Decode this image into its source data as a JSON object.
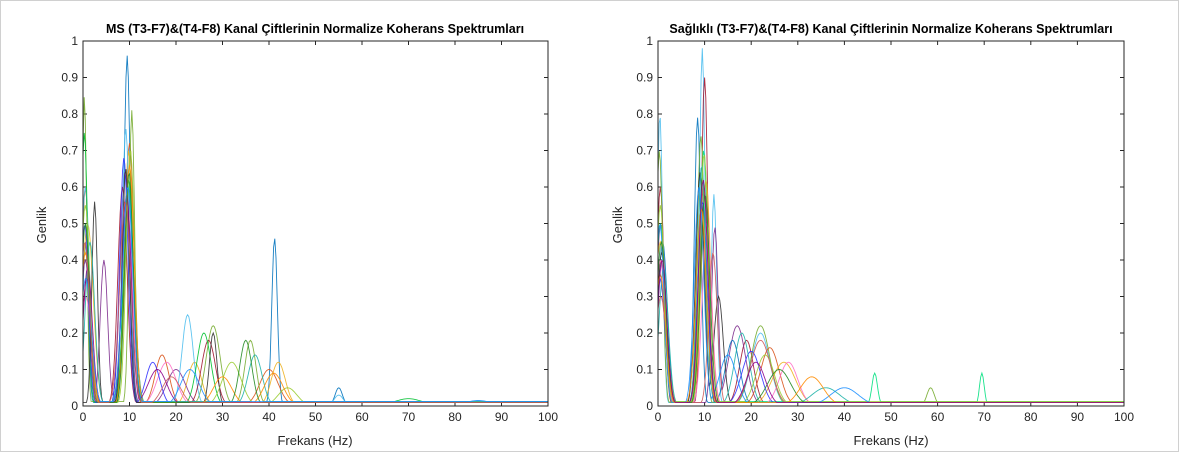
{
  "chart_data": [
    {
      "type": "line",
      "title": "MS (T3-F7)&(T4-F8) Kanal Çiftlerinin Normalize Koherans Spektrumları",
      "xlabel": "Frekans (Hz)",
      "ylabel": "Genlik",
      "xlim": [
        0,
        100
      ],
      "ylim": [
        0,
        1
      ],
      "xticks": [
        "0",
        "10",
        "20",
        "30",
        "40",
        "50",
        "60",
        "70",
        "80",
        "90",
        "100"
      ],
      "yticks": [
        "0",
        "0.1",
        "0.2",
        "0.3",
        "0.4",
        "0.5",
        "0.6",
        "0.7",
        "0.8",
        "0.9",
        "1"
      ],
      "grid": false,
      "legend": "none",
      "series": [
        {
          "color": "#0072bd",
          "peaks": [
            [
              0.5,
              0.45,
              0.6
            ],
            [
              9.5,
              0.96,
              0.7
            ],
            [
              41.2,
              0.46,
              0.6
            ],
            [
              55,
              0.05,
              0.8
            ]
          ],
          "floor": 0.01
        },
        {
          "color": "#d95319",
          "peaks": [
            [
              0.5,
              0.6,
              0.8
            ],
            [
              10,
              0.72,
              1.0
            ],
            [
              17,
              0.14,
              1.5
            ],
            [
              40,
              0.1,
              2.0
            ]
          ],
          "floor": 0.012
        },
        {
          "color": "#edb120",
          "peaks": [
            [
              1,
              0.5,
              1.2
            ],
            [
              9.8,
              0.7,
              0.9
            ],
            [
              24,
              0.12,
              1.5
            ],
            [
              42,
              0.12,
              1.5
            ]
          ],
          "floor": 0.01
        },
        {
          "color": "#7e2f8e",
          "peaks": [
            [
              0.5,
              0.4,
              1.0
            ],
            [
              4.5,
              0.4,
              0.8
            ],
            [
              9,
              0.64,
              1.0
            ],
            [
              20,
              0.1,
              2.0
            ]
          ],
          "floor": 0.01
        },
        {
          "color": "#77ac30",
          "peaks": [
            [
              0.3,
              0.85,
              0.5
            ],
            [
              10.5,
              0.81,
              0.6
            ],
            [
              28,
              0.22,
              1.5
            ],
            [
              36,
              0.18,
              1.2
            ]
          ],
          "floor": 0.012
        },
        {
          "color": "#4dbeee",
          "peaks": [
            [
              0.5,
              0.6,
              0.9
            ],
            [
              9.2,
              0.76,
              0.8
            ],
            [
              22.5,
              0.25,
              1.2
            ],
            [
              55,
              0.03,
              1.0
            ]
          ],
          "floor": 0.01
        },
        {
          "color": "#a2142f",
          "peaks": [
            [
              0.8,
              0.35,
              1.0
            ],
            [
              8.5,
              0.6,
              1.0
            ],
            [
              27,
              0.18,
              1.5
            ]
          ],
          "floor": 0.01
        },
        {
          "color": "#00c030",
          "peaks": [
            [
              0.3,
              0.75,
              0.7
            ],
            [
              9.8,
              0.62,
              1.0
            ],
            [
              26,
              0.2,
              1.5
            ],
            [
              70,
              0.02,
              3.0
            ]
          ],
          "floor": 0.01
        },
        {
          "color": "#ff6ec7",
          "peaks": [
            [
              0.6,
              0.3,
              1.2
            ],
            [
              9.5,
              0.55,
              1.1
            ],
            [
              18,
              0.12,
              2.0
            ]
          ],
          "floor": 0.01
        },
        {
          "color": "#3030ff",
          "peaks": [
            [
              0.4,
              0.5,
              0.8
            ],
            [
              8.8,
              0.68,
              0.9
            ],
            [
              15,
              0.12,
              1.5
            ]
          ],
          "floor": 0.01
        },
        {
          "color": "#2f2f2f",
          "peaks": [
            [
              2.5,
              0.56,
              0.6
            ],
            [
              9.2,
              0.65,
              0.8
            ],
            [
              28,
              0.2,
              0.8
            ]
          ],
          "floor": 0.01
        },
        {
          "color": "#9acd32",
          "peaks": [
            [
              0.5,
              0.55,
              1.0
            ],
            [
              10.2,
              0.7,
              0.9
            ],
            [
              32,
              0.12,
              2.0
            ],
            [
              44,
              0.05,
              2.0
            ]
          ],
          "floor": 0.01
        },
        {
          "color": "#20b2aa",
          "peaks": [
            [
              1.5,
              0.45,
              1.0
            ],
            [
              9.7,
              0.6,
              1.2
            ],
            [
              37,
              0.14,
              1.5
            ]
          ],
          "floor": 0.012
        },
        {
          "color": "#ff8c00",
          "peaks": [
            [
              0.5,
              0.42,
              1.1
            ],
            [
              10,
              0.66,
              1.0
            ],
            [
              30,
              0.08,
              2.0
            ],
            [
              41,
              0.09,
              2.0
            ]
          ],
          "floor": 0.01
        },
        {
          "color": "#8b008b",
          "peaks": [
            [
              1,
              0.38,
              1.0
            ],
            [
              9.4,
              0.58,
              1.0
            ],
            [
              16,
              0.1,
              2.0
            ]
          ],
          "floor": 0.01
        },
        {
          "color": "#228b22",
          "peaks": [
            [
              0.5,
              0.5,
              0.9
            ],
            [
              9.9,
              0.64,
              0.9
            ],
            [
              35,
              0.18,
              1.3
            ]
          ],
          "floor": 0.01
        },
        {
          "color": "#1e90ff",
          "peaks": [
            [
              0.6,
              0.35,
              1.2
            ],
            [
              9.6,
              0.6,
              1.1
            ],
            [
              23,
              0.1,
              2.0
            ],
            [
              85,
              0.015,
              3.0
            ]
          ],
          "floor": 0.012
        },
        {
          "color": "#cd5c5c",
          "peaks": [
            [
              0.4,
              0.45,
              1.0
            ],
            [
              9.1,
              0.56,
              1.2
            ],
            [
              19,
              0.08,
              2.0
            ]
          ],
          "floor": 0.01
        }
      ]
    },
    {
      "type": "line",
      "title": "Sağlıklı (T3-F7)&(T4-F8) Kanal Çiftlerinin Normalize Koherans Spektrumları",
      "xlabel": "Frekans (Hz)",
      "ylabel": "Genlik",
      "xlim": [
        0,
        100
      ],
      "ylim": [
        0,
        1
      ],
      "xticks": [
        "0",
        "10",
        "20",
        "30",
        "40",
        "50",
        "60",
        "70",
        "80",
        "90",
        "100"
      ],
      "yticks": [
        "0",
        "0.1",
        "0.2",
        "0.3",
        "0.4",
        "0.5",
        "0.6",
        "0.7",
        "0.8",
        "0.9",
        "1"
      ],
      "grid": false,
      "legend": "none",
      "series": [
        {
          "color": "#4dbeee",
          "peaks": [
            [
              0.4,
              0.8,
              0.6
            ],
            [
              9.5,
              0.98,
              0.6
            ],
            [
              12,
              0.58,
              0.6
            ],
            [
              22,
              0.2,
              2.0
            ]
          ],
          "floor": 0.01
        },
        {
          "color": "#a2142f",
          "peaks": [
            [
              0.5,
              0.6,
              0.8
            ],
            [
              10,
              0.9,
              0.7
            ],
            [
              19,
              0.18,
              1.5
            ]
          ],
          "floor": 0.01
        },
        {
          "color": "#7e2f8e",
          "peaks": [
            [
              0.6,
              0.5,
              1.0
            ],
            [
              12.2,
              0.49,
              0.7
            ],
            [
              17,
              0.22,
              1.8
            ]
          ],
          "floor": 0.01
        },
        {
          "color": "#0072bd",
          "peaks": [
            [
              1,
              0.45,
              1.0
            ],
            [
              8.5,
              0.79,
              0.7
            ],
            [
              16,
              0.18,
              1.5
            ]
          ],
          "floor": 0.01
        },
        {
          "color": "#00e080",
          "peaks": [
            [
              0.5,
              0.5,
              1.0
            ],
            [
              9.8,
              0.7,
              0.9
            ],
            [
              46.5,
              0.09,
              0.6
            ],
            [
              69.5,
              0.09,
              0.5
            ]
          ],
          "floor": 0.012
        },
        {
          "color": "#77ac30",
          "peaks": [
            [
              0.3,
              0.7,
              0.7
            ],
            [
              9.2,
              0.74,
              0.8
            ],
            [
              22,
              0.22,
              2.0
            ],
            [
              58.5,
              0.05,
              0.8
            ]
          ],
          "floor": 0.01
        },
        {
          "color": "#d95319",
          "peaks": [
            [
              0.6,
              0.4,
              1.0
            ],
            [
              9.8,
              0.6,
              1.0
            ],
            [
              24,
              0.16,
              2.0
            ]
          ],
          "floor": 0.01
        },
        {
          "color": "#edb120",
          "peaks": [
            [
              0.5,
              0.45,
              1.2
            ],
            [
              10.3,
              0.62,
              1.0
            ],
            [
              27,
              0.12,
              2.5
            ]
          ],
          "floor": 0.01
        },
        {
          "color": "#2f2f2f",
          "peaks": [
            [
              0.8,
              0.42,
              1.0
            ],
            [
              9,
              0.64,
              0.9
            ],
            [
              13,
              0.3,
              1.0
            ]
          ],
          "floor": 0.01
        },
        {
          "color": "#3030ff",
          "peaks": [
            [
              0.4,
              0.35,
              1.1
            ],
            [
              9.6,
              0.56,
              1.0
            ],
            [
              20,
              0.15,
              2.0
            ]
          ],
          "floor": 0.01
        },
        {
          "color": "#ff6ec7",
          "peaks": [
            [
              0.5,
              0.4,
              1.0
            ],
            [
              10.5,
              0.5,
              1.0
            ],
            [
              28,
              0.12,
              2.0
            ]
          ],
          "floor": 0.01
        },
        {
          "color": "#20b2aa",
          "peaks": [
            [
              1.2,
              0.38,
              1.0
            ],
            [
              9.4,
              0.66,
              0.9
            ],
            [
              18,
              0.2,
              1.6
            ],
            [
              36,
              0.05,
              3.0
            ]
          ],
          "floor": 0.01
        },
        {
          "color": "#9acd32",
          "peaks": [
            [
              0.5,
              0.55,
              0.9
            ],
            [
              9.9,
              0.69,
              0.9
            ],
            [
              23,
              0.14,
              2.0
            ]
          ],
          "floor": 0.012
        },
        {
          "color": "#cd5c5c",
          "peaks": [
            [
              0.6,
              0.3,
              1.2
            ],
            [
              11.8,
              0.42,
              0.9
            ],
            [
              22,
              0.18,
              2.2
            ]
          ],
          "floor": 0.01
        },
        {
          "color": "#1e90ff",
          "peaks": [
            [
              0.4,
              0.5,
              0.9
            ],
            [
              8.8,
              0.6,
              1.0
            ],
            [
              15,
              0.14,
              1.8
            ],
            [
              40,
              0.05,
              3.0
            ]
          ],
          "floor": 0.01
        },
        {
          "color": "#228b22",
          "peaks": [
            [
              0.7,
              0.45,
              1.0
            ],
            [
              10.1,
              0.58,
              1.0
            ],
            [
              26,
              0.1,
              2.5
            ]
          ],
          "floor": 0.01
        },
        {
          "color": "#ff8c00",
          "peaks": [
            [
              0.5,
              0.36,
              1.1
            ],
            [
              9.3,
              0.54,
              1.1
            ],
            [
              33,
              0.08,
              2.5
            ]
          ],
          "floor": 0.01
        },
        {
          "color": "#8b008b",
          "peaks": [
            [
              0.9,
              0.4,
              1.0
            ],
            [
              9.7,
              0.62,
              1.0
            ],
            [
              21,
              0.12,
              2.0
            ]
          ],
          "floor": 0.01
        }
      ]
    }
  ]
}
